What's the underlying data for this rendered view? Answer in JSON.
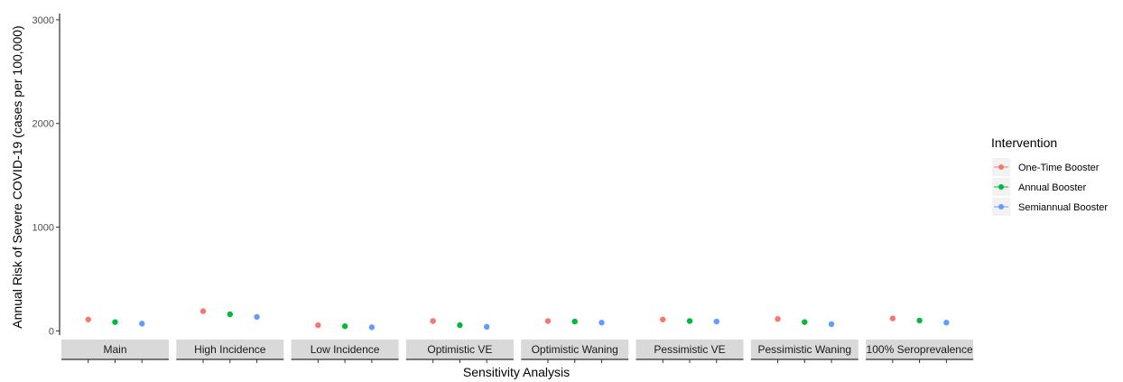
{
  "chart_data": {
    "type": "scatter",
    "xlabel": "Sensitivity Analysis",
    "ylabel": "Annual Risk of Severe COVID-19 (cases per 100,000)",
    "ylim": [
      -40,
      3060
    ],
    "yticks": [
      0,
      1000,
      2000,
      3000
    ],
    "grid": false,
    "legend": {
      "title": "Intervention",
      "position": "right"
    },
    "categories": [
      "Main",
      "High Incidence",
      "Low Incidence",
      "Optimistic VE",
      "Optimistic Waning",
      "Pessimistic VE",
      "Pessimistic Waning",
      "100% Seroprevalence"
    ],
    "series": [
      {
        "name": "One-Time Booster",
        "color": "#F8766D",
        "values": [
          110,
          190,
          55,
          95,
          95,
          110,
          115,
          120
        ]
      },
      {
        "name": "Annual Booster",
        "color": "#00BA38",
        "values": [
          85,
          160,
          45,
          55,
          90,
          95,
          85,
          100
        ]
      },
      {
        "name": "Semiannual Booster",
        "color": "#619CFF",
        "values": [
          70,
          135,
          35,
          40,
          80,
          90,
          65,
          80
        ]
      }
    ]
  }
}
